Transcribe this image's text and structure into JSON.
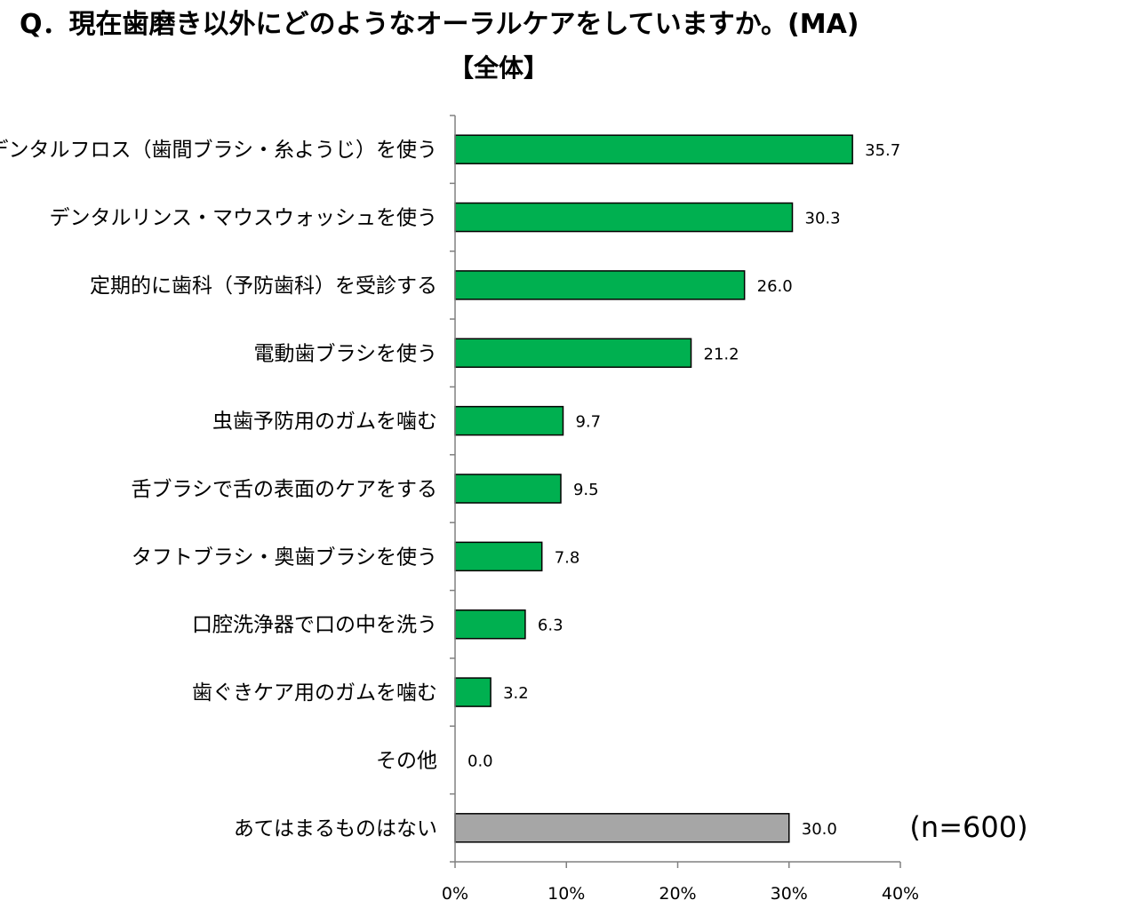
{
  "title": "Q．現在歯磨き以外にどのようなオーラルケアをしていますか。(MA)",
  "subtitle": "【全体】",
  "sample_note": "(n=600)",
  "colors": {
    "main_bar": "#00B050",
    "last_bar": "#A6A6A6",
    "axis": "#808080"
  },
  "chart_data": {
    "type": "bar",
    "orientation": "horizontal",
    "title": "Q．現在歯磨き以外にどのようなオーラルケアをしていますか。(MA)",
    "subtitle": "【全体】",
    "categories": [
      "デンタルフロス（歯間ブラシ・糸ようじ）を使う",
      "デンタルリンス・マウスウォッシュを使う",
      "定期的に歯科（予防歯科）を受診する",
      "電動歯ブラシを使う",
      "虫歯予防用のガムを噛む",
      "舌ブラシで舌の表面のケアをする",
      "タフトブラシ・奥歯ブラシを使う",
      "口腔洗浄器で口の中を洗う",
      "歯ぐきケア用のガムを噛む",
      "その他",
      "あてはまるものはない"
    ],
    "values": [
      35.7,
      30.3,
      26.0,
      21.2,
      9.7,
      9.5,
      7.8,
      6.3,
      3.2,
      0.0,
      30.0
    ],
    "value_labels": [
      "35.7",
      "30.3",
      "26.0",
      "21.2",
      "9.7",
      "9.5",
      "7.8",
      "6.3",
      "3.2",
      "0.0",
      "30.0"
    ],
    "xlim": [
      0,
      40
    ],
    "xticks": [
      0,
      10,
      20,
      30,
      40
    ],
    "xtick_labels": [
      "0%",
      "10%",
      "20%",
      "30%",
      "40%"
    ],
    "xlabel": "",
    "ylabel": "",
    "grid": false,
    "legend": "none",
    "annotation": "(n=600)"
  }
}
